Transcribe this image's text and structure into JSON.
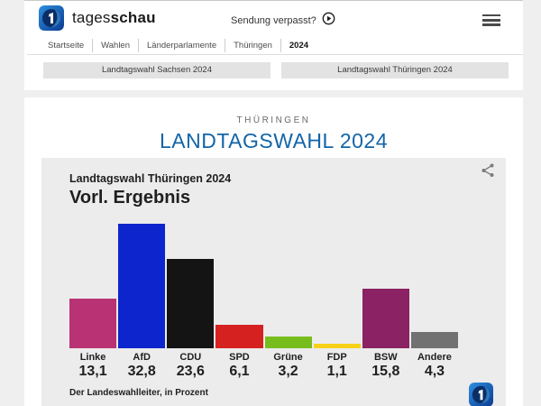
{
  "header": {
    "logo_regular": "tages",
    "logo_bold": "schau",
    "broadcast_link": "Sendung verpasst?",
    "breadcrumb": [
      "Startseite",
      "Wahlen",
      "Länderparlamente",
      "Thüringen",
      "2024"
    ]
  },
  "tabs": [
    "Landtagswahl Sachsen 2024",
    "Landtagswahl Thüringen 2024"
  ],
  "page": {
    "kicker": "THÜRINGEN",
    "title": "LANDTAGSWAHL 2024",
    "title_color": "#1265a8"
  },
  "chart_data": {
    "type": "bar",
    "title": "Landtagswahl Thüringen 2024",
    "subtitle": "Vorl. Ergebnis",
    "source": "Der Landeswahlleiter, in Prozent",
    "unit": "Prozent",
    "categories": [
      "Linke",
      "AfD",
      "CDU",
      "SPD",
      "Grüne",
      "FDP",
      "BSW",
      "Andere"
    ],
    "values": [
      13.1,
      32.8,
      23.6,
      6.1,
      3.2,
      1.1,
      15.8,
      4.3
    ],
    "value_labels": [
      "13,1",
      "32,8",
      "23,6",
      "6,1",
      "3,2",
      "1,1",
      "15,8",
      "4,3"
    ],
    "colors": [
      "#b93273",
      "#0c25cc",
      "#141414",
      "#d52221",
      "#77bd1e",
      "#f7d117",
      "#8a2264",
      "#717171"
    ],
    "ylim": [
      0,
      33.3
    ],
    "grid": false,
    "legend": false
  }
}
